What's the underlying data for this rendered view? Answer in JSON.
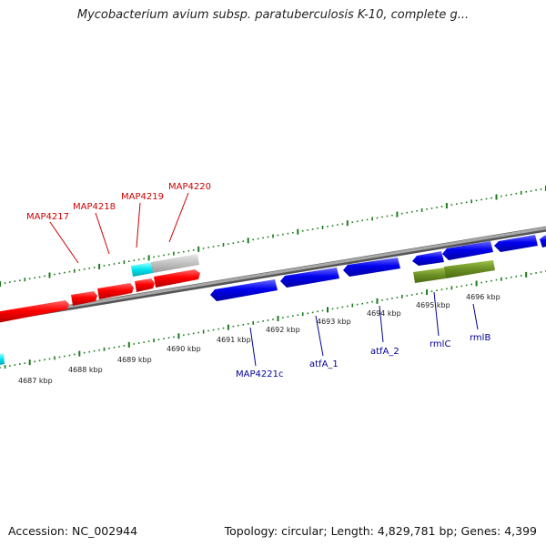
{
  "title": "Mycobacterium avium subsp. paratuberculosis K-10, complete g...",
  "footer": {
    "accession": "Accession: NC_002944",
    "topology": "Topology: circular; Length: 4,829,781 bp; Genes: 4,399"
  },
  "colors": {
    "forward_gene": "#ff0000",
    "reverse_gene": "#0000ee",
    "rrna": "#6b8e23",
    "cyan_feature": "#00e5ee",
    "gray_feature": "#c0c0c0",
    "tick": "#1a7a1a",
    "backbone": "#888888",
    "forward_label": "#cc0000",
    "reverse_label": "#000099"
  },
  "kbp_labels": [
    "4687 kbp",
    "4688 kbp",
    "4689 kbp",
    "4690 kbp",
    "4691 kbp",
    "4692 kbp",
    "4693 kbp",
    "4694 kbp",
    "4695 kbp",
    "4696 kbp"
  ],
  "forward_genes": [
    "MAP4217",
    "MAP4218",
    "MAP4219",
    "MAP4220"
  ],
  "reverse_genes": [
    "MAP4221c",
    "atfA_1",
    "atfA_2",
    "rmlC",
    "rmlB"
  ]
}
